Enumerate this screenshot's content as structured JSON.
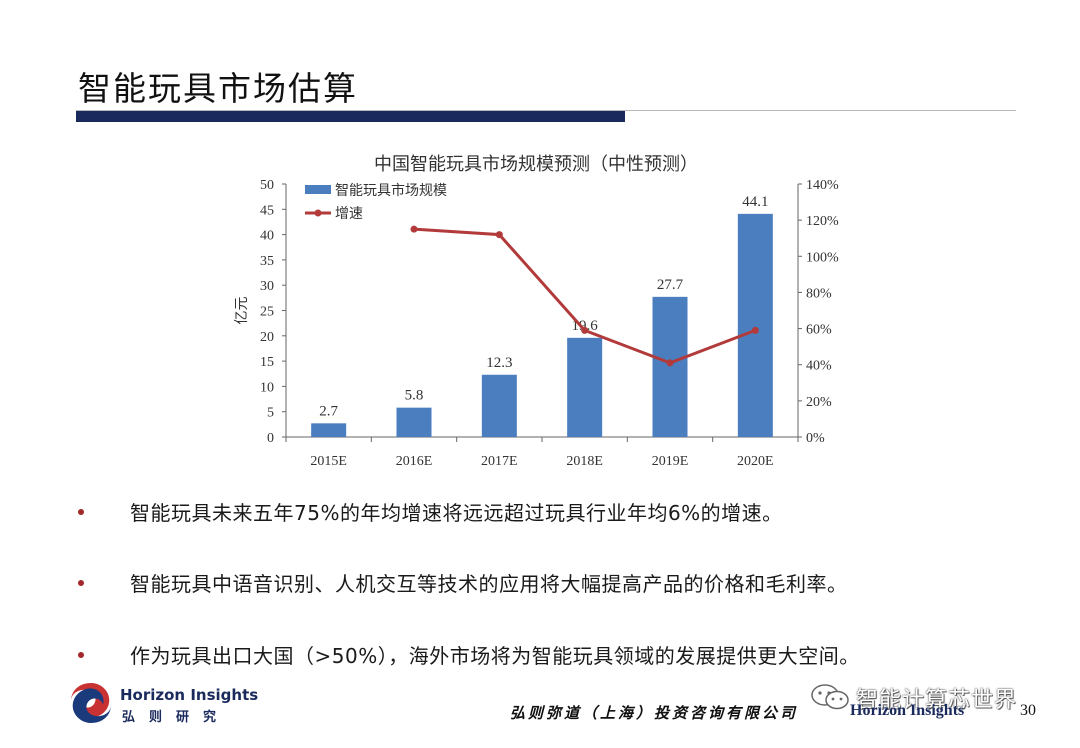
{
  "slide": {
    "title": "智能玩具市场估算",
    "bullets": [
      "智能玩具未来五年75%的年均增速将远远超过玩具行业年均6%的增速。",
      "智能玩具中语音识别、人机交互等技术的应用将大幅提高产品的价格和毛利率。",
      "作为玩具出口大国（>50%），海外市场将为智能玩具领域的发展提供更大空间。"
    ]
  },
  "chart_data": {
    "type": "bar",
    "title": "中国智能玩具市场规模预测（中性预测）",
    "categories": [
      "2015E",
      "2016E",
      "2017E",
      "2018E",
      "2019E",
      "2020E"
    ],
    "series": [
      {
        "name": "智能玩具市场规模",
        "type": "bar",
        "axis": "left",
        "values": [
          2.7,
          5.8,
          12.3,
          19.6,
          27.7,
          44.1
        ],
        "data_labels": [
          "2.7",
          "5.8",
          "12.3",
          "19.6",
          "27.7",
          "44.1"
        ],
        "color": "#4a7ebf"
      },
      {
        "name": "增速",
        "type": "line",
        "axis": "right",
        "values": [
          null,
          115,
          112,
          59,
          41,
          59
        ],
        "color": "#b23a3a"
      }
    ],
    "ylabel": "亿元",
    "ylim": [
      0,
      50
    ],
    "y_ticks": [
      "0",
      "5",
      "10",
      "15",
      "20",
      "25",
      "30",
      "35",
      "40",
      "45",
      "50"
    ],
    "y2lim": [
      0,
      140
    ],
    "y2_ticks": [
      "0%",
      "20%",
      "40%",
      "60%",
      "80%",
      "100%",
      "120%",
      "140%"
    ],
    "legend": "top-left",
    "grid": false
  },
  "footer": {
    "logo_en": "Horizon Insights",
    "logo_cn": "弘则研究",
    "company": "弘则弥道（上海）投资咨询有限公司",
    "brand": "Horizon Insights",
    "page": "30",
    "watermark": "智能计算芯世界"
  }
}
